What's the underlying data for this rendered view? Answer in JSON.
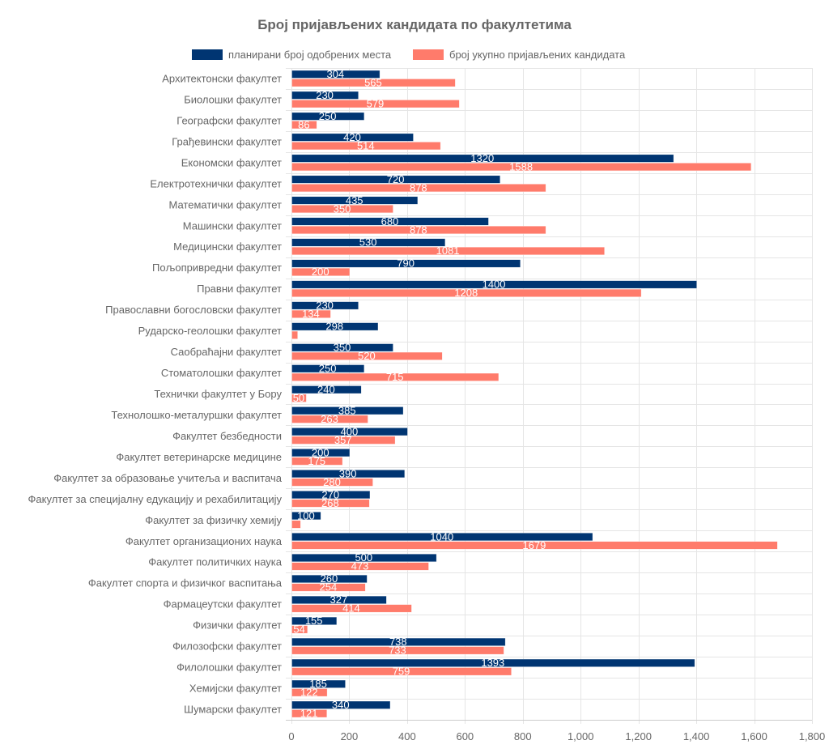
{
  "chart_data": {
    "type": "bar",
    "orientation": "horizontal",
    "title": "Број пријављених кандидата по факултетима",
    "xlabel": "",
    "ylabel": "",
    "xlim": [
      0,
      1800
    ],
    "x_ticks": [
      0,
      200,
      400,
      600,
      800,
      1000,
      1200,
      1400,
      1600,
      1800
    ],
    "x_tick_labels": [
      "0",
      "200",
      "400",
      "600",
      "800",
      "1,000",
      "1,200",
      "1,400",
      "1,600",
      "1,800"
    ],
    "grid": true,
    "legend_position": "top",
    "categories": [
      "Архитектонски факултет",
      "Биолошки факултет",
      "Географски факултет",
      "Грађевински факултет",
      "Економски факултет",
      "Електротехнички факултет",
      "Математички факултет",
      "Машински факултет",
      "Медицински факултет",
      "Пољопривредни факултет",
      "Правни факултет",
      "Православни богословски факултет",
      "Рударско-геолошки факултет",
      "Саобраћајни факултет",
      "Стоматолошки факултет",
      "Технички факултет у Бору",
      "Технолошко-металуршки факултет",
      "Факултет безбедности",
      "Факултет ветеринарске медицине",
      "Факултет за образовање учитеља и васпитача",
      "Факултет за специјалну едукацију и рехабилитацију",
      "Факултет за физичку хемију",
      "Факултет организационих наука",
      "Факултет политичких наука",
      "Факултет спорта и физичког васпитања",
      "Фармацеутски факултет",
      "Физички факултет",
      "Филозофски факултет",
      "Филолошки факултет",
      "Хемијски факултет",
      "Шумарски факултет"
    ],
    "series": [
      {
        "name": "планирани број одобрених места",
        "color": "#003572",
        "values": [
          304,
          230,
          250,
          420,
          1320,
          720,
          435,
          680,
          530,
          790,
          1400,
          230,
          298,
          350,
          250,
          240,
          385,
          400,
          200,
          390,
          270,
          100,
          1040,
          500,
          260,
          327,
          155,
          738,
          1393,
          185,
          340
        ],
        "labels_shown": [
          true,
          true,
          true,
          true,
          true,
          true,
          true,
          true,
          true,
          true,
          true,
          true,
          true,
          true,
          true,
          true,
          true,
          true,
          true,
          true,
          true,
          true,
          true,
          true,
          true,
          true,
          true,
          true,
          true,
          true,
          true
        ]
      },
      {
        "name": "број укупно пријављених кандидата",
        "color": "#FF7B6B",
        "values": [
          565,
          579,
          86,
          514,
          1588,
          878,
          350,
          878,
          1081,
          200,
          1208,
          134,
          20,
          520,
          715,
          50,
          263,
          357,
          175,
          280,
          268,
          30,
          1679,
          473,
          254,
          414,
          54,
          733,
          759,
          122,
          121
        ],
        "labels_shown": [
          true,
          true,
          true,
          true,
          true,
          true,
          true,
          true,
          true,
          true,
          true,
          true,
          false,
          true,
          true,
          true,
          true,
          true,
          true,
          true,
          true,
          false,
          true,
          true,
          true,
          true,
          true,
          true,
          true,
          true,
          true
        ]
      }
    ]
  }
}
